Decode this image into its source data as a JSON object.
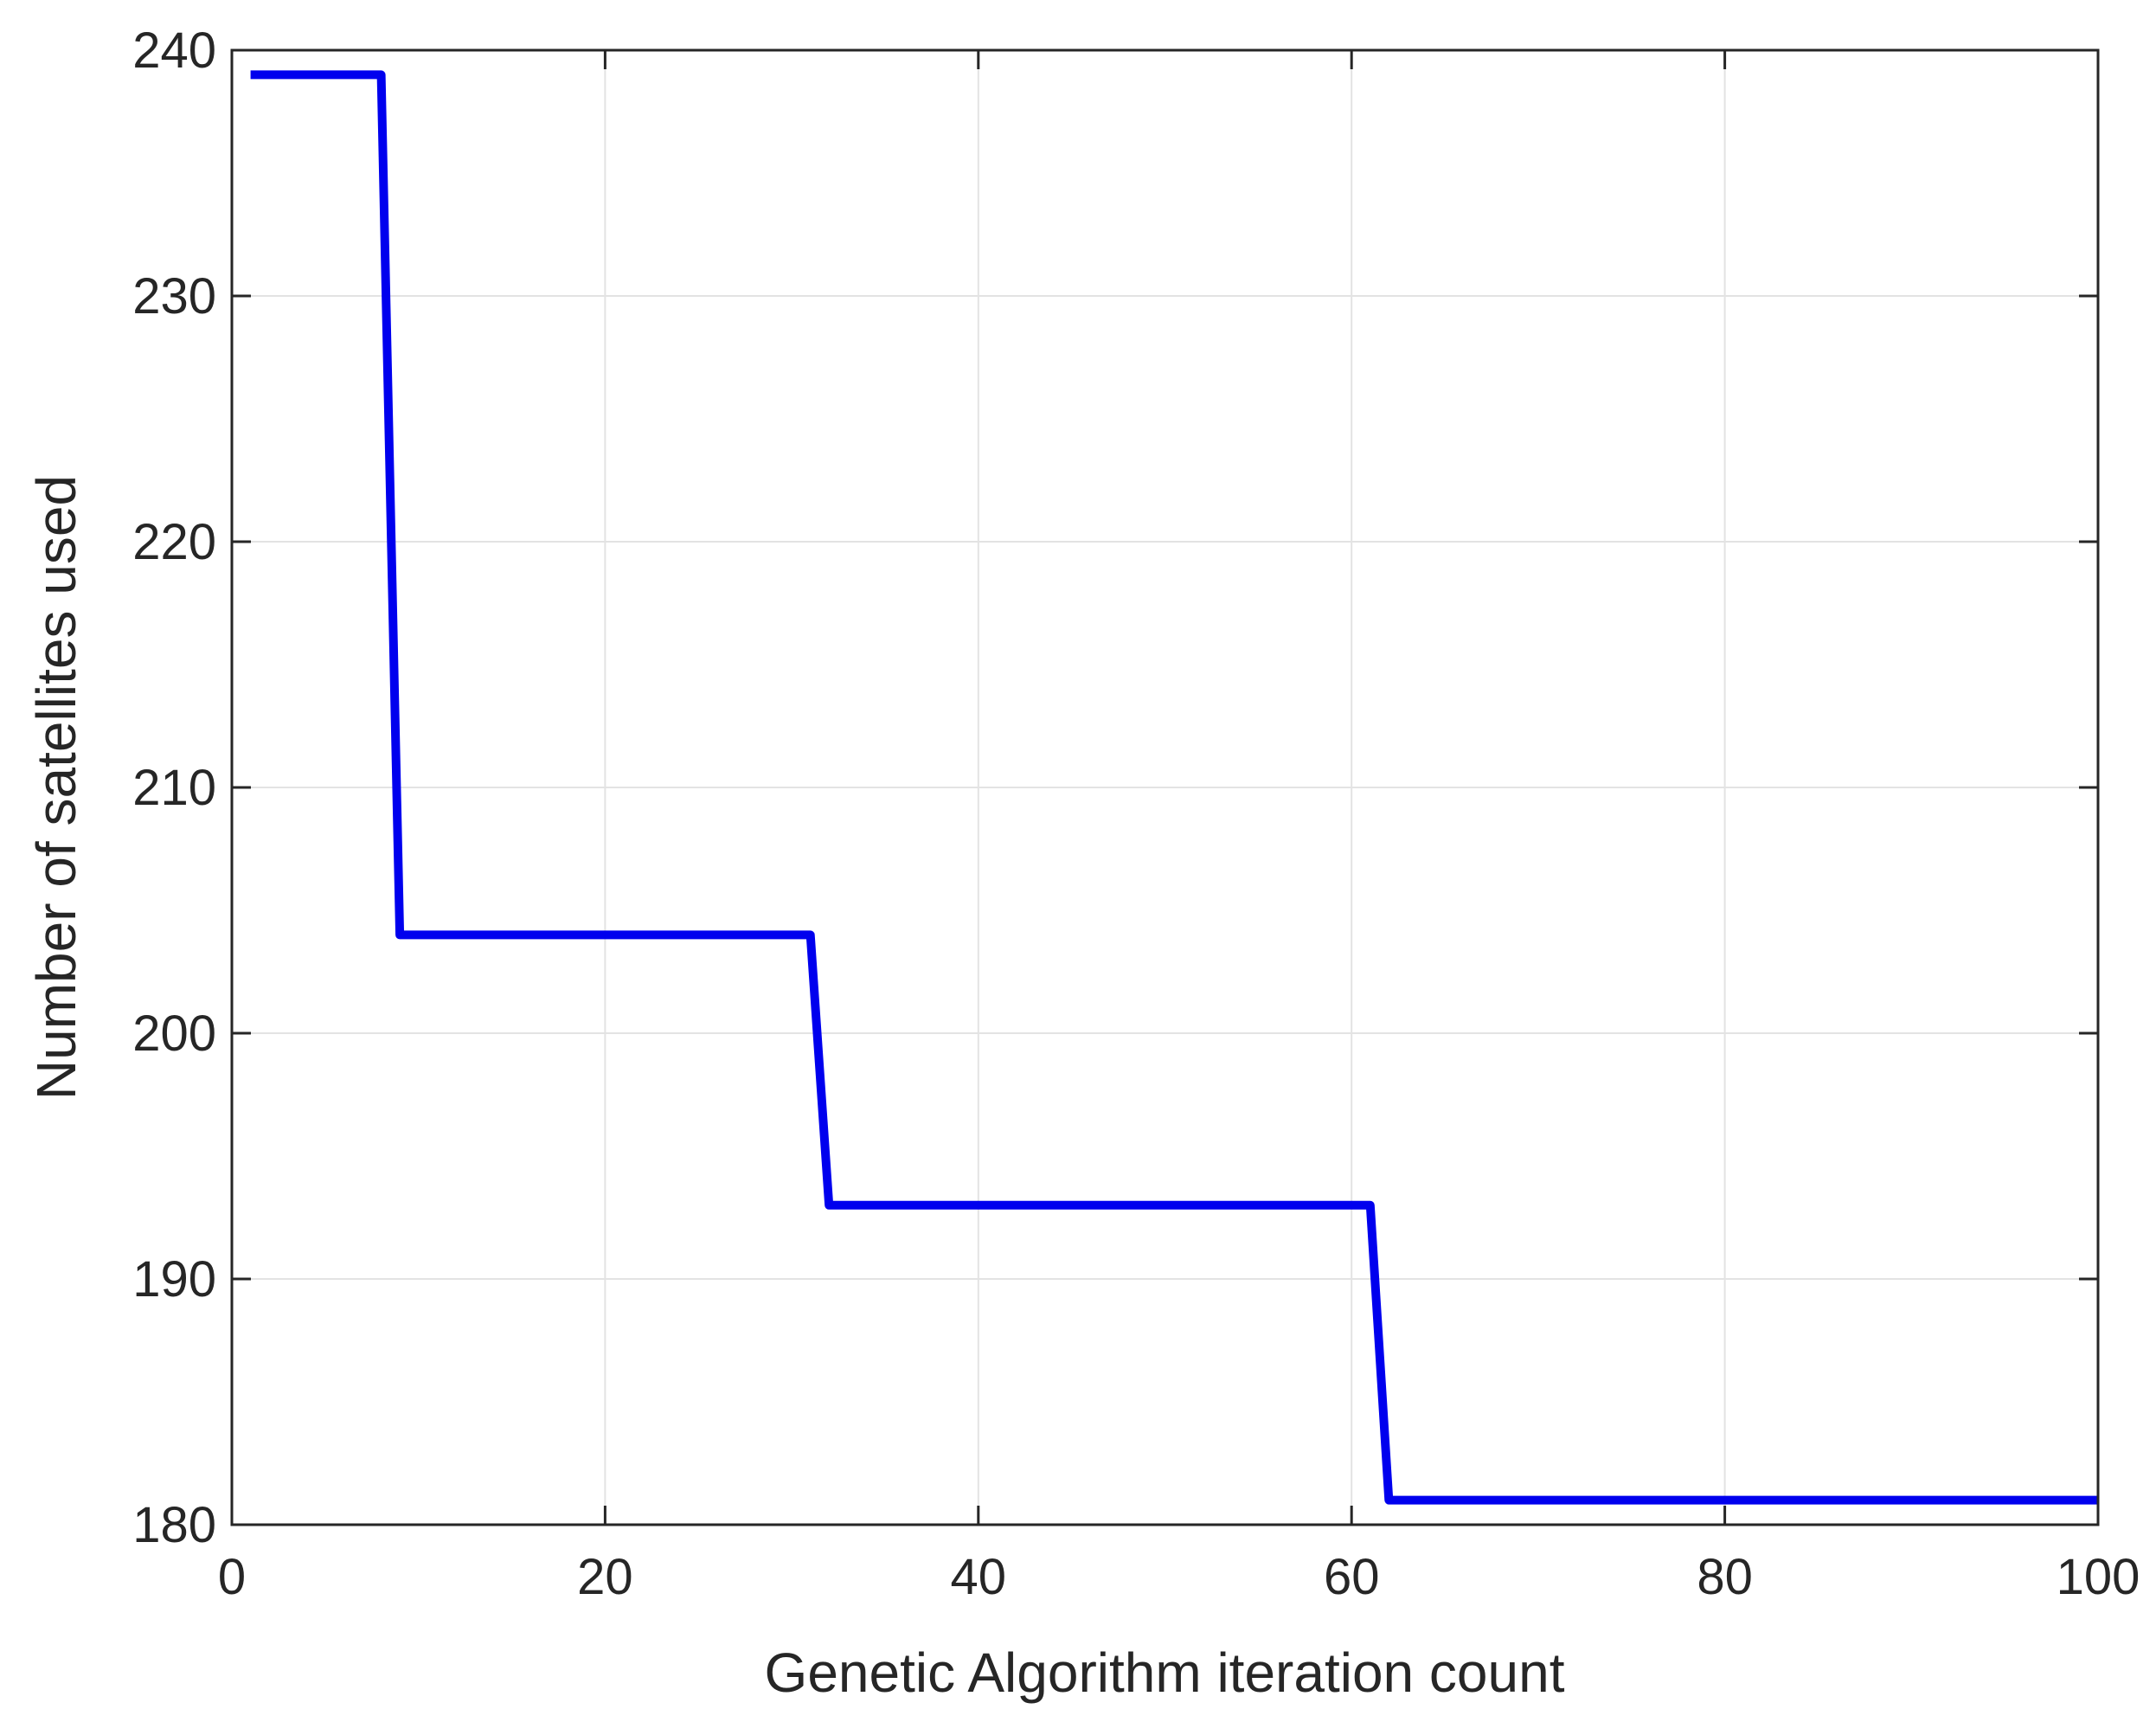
{
  "chart_data": {
    "type": "line",
    "title": "",
    "xlabel": "Genetic Algorithm iteration count",
    "ylabel": "Number of satellites used",
    "xlim": [
      0,
      100
    ],
    "ylim": [
      180,
      240
    ],
    "xticks": [
      0,
      20,
      40,
      60,
      80,
      100
    ],
    "yticks": [
      180,
      190,
      200,
      210,
      220,
      230,
      240
    ],
    "grid": true,
    "legend": "none",
    "series": [
      {
        "color": "#0000ee",
        "x": [
          1,
          8,
          9,
          31,
          32,
          61,
          62,
          100
        ],
        "y": [
          239,
          239,
          204,
          204,
          193,
          193,
          181,
          181
        ]
      }
    ]
  }
}
